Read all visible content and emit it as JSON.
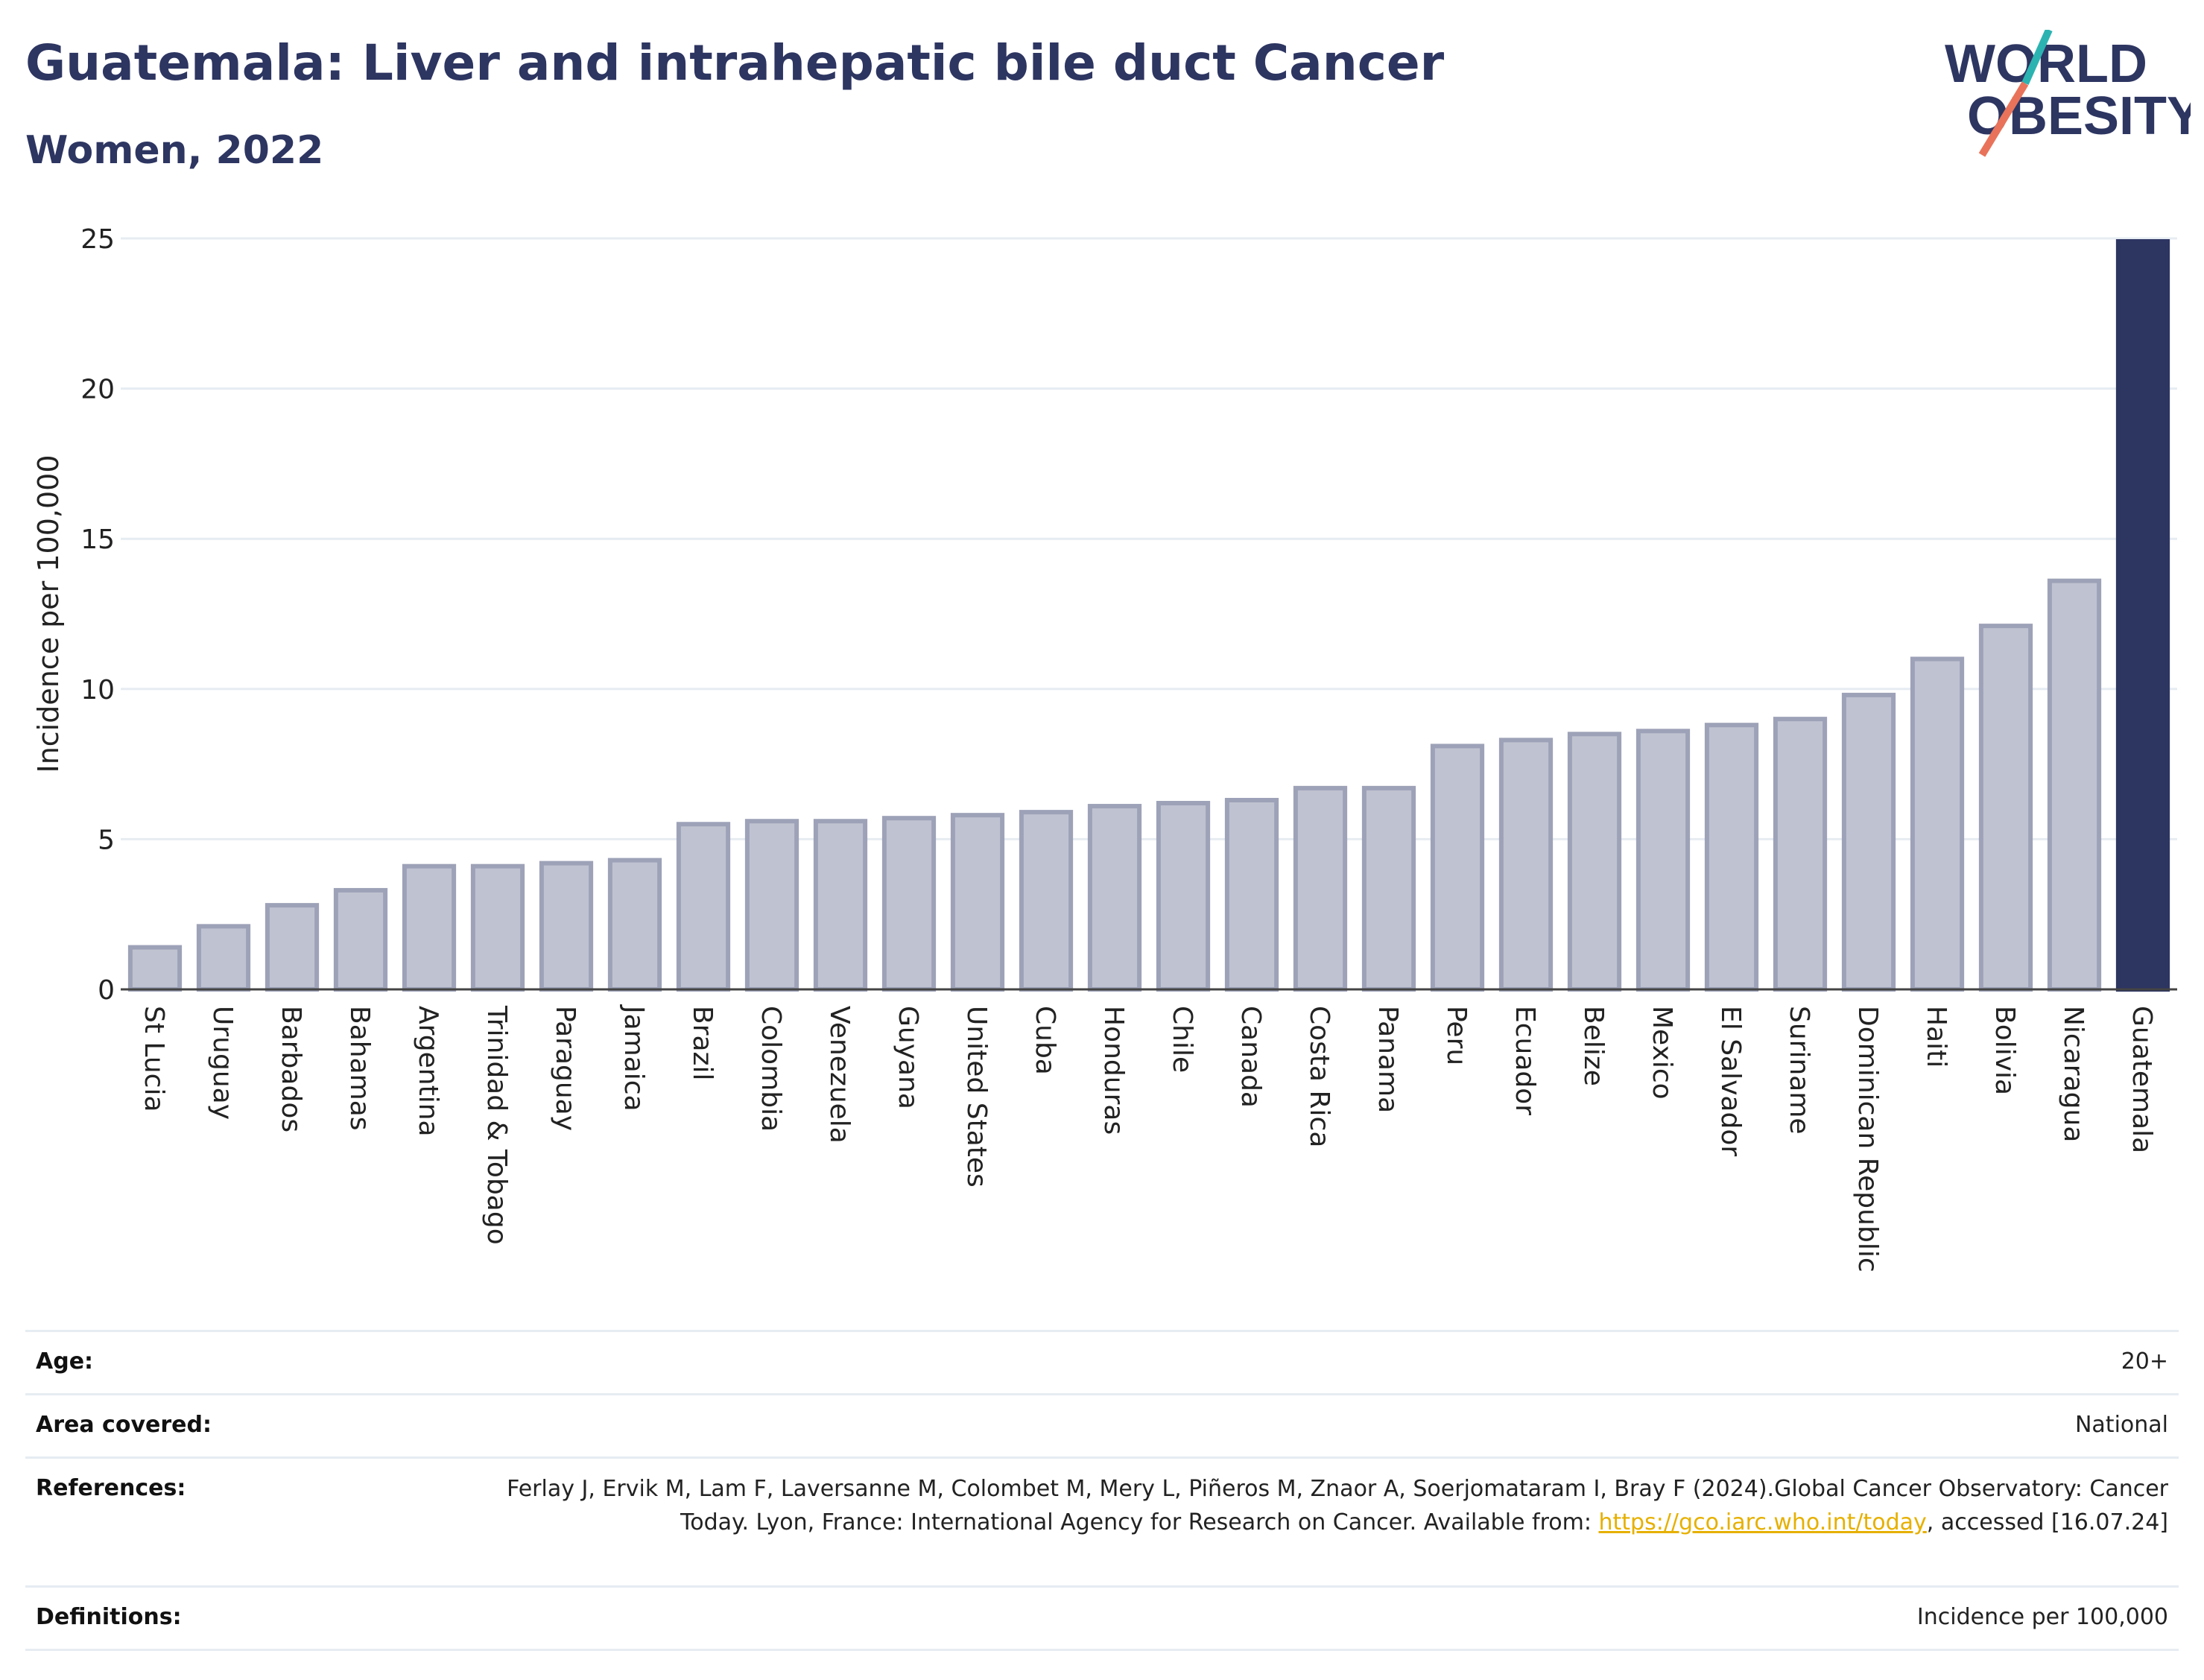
{
  "header": {
    "title": "Guatemala: Liver and intrahepatic bile duct Cancer",
    "subtitle": "Women, 2022"
  },
  "logo": {
    "line1": "WORLD",
    "line2": "OBESITY",
    "colors": {
      "text": "#2d3561",
      "slash_teal": "#2bb3b1",
      "slash_red": "#e8735a"
    }
  },
  "chart_data": {
    "type": "bar",
    "title": "Guatemala: Liver and intrahepatic bile duct Cancer",
    "subtitle": "Women, 2022",
    "xlabel": "",
    "ylabel": "Incidence per 100,000",
    "ylim": [
      0,
      25
    ],
    "yticks": [
      0,
      5,
      10,
      15,
      20,
      25
    ],
    "grid": true,
    "highlight": "Guatemala",
    "colors": {
      "bar": "#bfc2d0",
      "bar_edge": "#9ea2b8",
      "highlight": "#2d3561",
      "grid": "#e6ecf2"
    },
    "categories": [
      "St Lucia",
      "Uruguay",
      "Barbados",
      "Bahamas",
      "Argentina",
      "Trinidad & Tobago",
      "Paraguay",
      "Jamaica",
      "Brazil",
      "Colombia",
      "Venezuela",
      "Guyana",
      "United States",
      "Cuba",
      "Honduras",
      "Chile",
      "Canada",
      "Costa Rica",
      "Panama",
      "Peru",
      "Ecuador",
      "Belize",
      "Mexico",
      "El Salvador",
      "Suriname",
      "Dominican Republic",
      "Haiti",
      "Bolivia",
      "Nicaragua",
      "Guatemala"
    ],
    "values": [
      1.4,
      2.1,
      2.8,
      3.3,
      4.1,
      4.1,
      4.2,
      4.3,
      5.5,
      5.6,
      5.6,
      5.7,
      5.8,
      5.9,
      6.1,
      6.2,
      6.3,
      6.7,
      6.7,
      8.1,
      8.3,
      8.5,
      8.6,
      8.8,
      9.0,
      9.8,
      11.0,
      12.1,
      13.6,
      24.9
    ]
  },
  "meta": {
    "age": {
      "label": "Age:",
      "value": "20+"
    },
    "area": {
      "label": "Area covered:",
      "value": "National"
    },
    "references": {
      "label": "References:",
      "text_before": "Ferlay J, Ervik M, Lam F, Laversanne M, Colombet M, Mery L, Piñeros M, Znaor A, Soerjomataram I, Bray F (2024).Global Cancer Observatory: Cancer Today. Lyon, France: International Agency for Research on Cancer. Available from: ",
      "link": "https://gco.iarc.who.int/today",
      "text_after": ", accessed [16.07.24]"
    },
    "definitions": {
      "label": "Definitions:",
      "value": "Incidence per 100,000"
    }
  }
}
